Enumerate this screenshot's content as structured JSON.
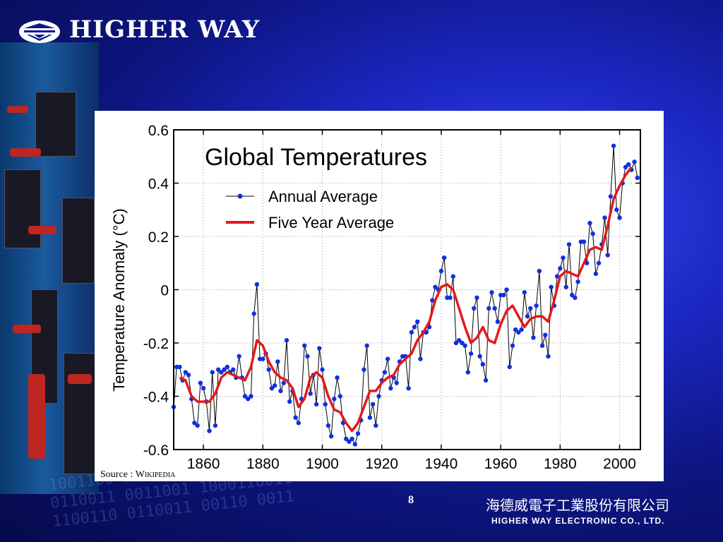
{
  "brand": {
    "name": "HIGHER WAY"
  },
  "slide": {
    "page_number": "8",
    "source_prefix": "Source : ",
    "source_name": "Wikipedia",
    "company_cn": "海德威電子工業股份有限公司",
    "company_en": "HIGHER WAY ELECTRONIC CO., LTD."
  },
  "colors": {
    "annual": "#1030e0",
    "five_year": "#e31a1a",
    "line": "#000000"
  },
  "chart_data": {
    "type": "line",
    "title": "Global Temperatures",
    "xlabel": "",
    "ylabel": "Temperature Anomaly (°C)",
    "xlim": [
      1850,
      2007
    ],
    "ylim": [
      -0.6,
      0.6
    ],
    "xticks": [
      "1860",
      "1880",
      "1900",
      "1920",
      "1940",
      "1960",
      "1980",
      "2000"
    ],
    "yticks": [
      "0.6",
      "0.4",
      "0.2",
      "0",
      "-0.2",
      "-0.4",
      "-0.6"
    ],
    "grid": true,
    "legend": "top-left",
    "series": [
      {
        "name": "Annual Average",
        "x": [
          1850,
          1851,
          1852,
          1853,
          1854,
          1855,
          1856,
          1857,
          1858,
          1859,
          1860,
          1861,
          1862,
          1863,
          1864,
          1865,
          1866,
          1867,
          1868,
          1869,
          1870,
          1871,
          1872,
          1873,
          1874,
          1875,
          1876,
          1877,
          1878,
          1879,
          1880,
          1881,
          1882,
          1883,
          1884,
          1885,
          1886,
          1887,
          1888,
          1889,
          1890,
          1891,
          1892,
          1893,
          1894,
          1895,
          1896,
          1897,
          1898,
          1899,
          1900,
          1901,
          1902,
          1903,
          1904,
          1905,
          1906,
          1907,
          1908,
          1909,
          1910,
          1911,
          1912,
          1913,
          1914,
          1915,
          1916,
          1917,
          1918,
          1919,
          1920,
          1921,
          1922,
          1923,
          1924,
          1925,
          1926,
          1927,
          1928,
          1929,
          1930,
          1931,
          1932,
          1933,
          1934,
          1935,
          1936,
          1937,
          1938,
          1939,
          1940,
          1941,
          1942,
          1943,
          1944,
          1945,
          1946,
          1947,
          1948,
          1949,
          1950,
          1951,
          1952,
          1953,
          1954,
          1955,
          1956,
          1957,
          1958,
          1959,
          1960,
          1961,
          1962,
          1963,
          1964,
          1965,
          1966,
          1967,
          1968,
          1969,
          1970,
          1971,
          1972,
          1973,
          1974,
          1975,
          1976,
          1977,
          1978,
          1979,
          1980,
          1981,
          1982,
          1983,
          1984,
          1985,
          1986,
          1987,
          1988,
          1989,
          1990,
          1991,
          1992,
          1993,
          1994,
          1995,
          1996,
          1997,
          1998,
          1999,
          2000,
          2001,
          2002,
          2003,
          2004,
          2005,
          2006
        ],
        "values": [
          -0.44,
          -0.29,
          -0.29,
          -0.34,
          -0.31,
          -0.32,
          -0.41,
          -0.5,
          -0.51,
          -0.35,
          -0.37,
          -0.42,
          -0.53,
          -0.31,
          -0.51,
          -0.3,
          -0.31,
          -0.3,
          -0.29,
          -0.31,
          -0.3,
          -0.33,
          -0.25,
          -0.33,
          -0.4,
          -0.41,
          -0.4,
          -0.09,
          0.02,
          -0.26,
          -0.26,
          -0.24,
          -0.3,
          -0.37,
          -0.36,
          -0.27,
          -0.38,
          -0.35,
          -0.19,
          -0.42,
          -0.38,
          -0.48,
          -0.5,
          -0.41,
          -0.21,
          -0.25,
          -0.39,
          -0.32,
          -0.43,
          -0.22,
          -0.3,
          -0.43,
          -0.51,
          -0.55,
          -0.41,
          -0.33,
          -0.4,
          -0.5,
          -0.56,
          -0.57,
          -0.56,
          -0.58,
          -0.54,
          -0.49,
          -0.3,
          -0.21,
          -0.48,
          -0.43,
          -0.51,
          -0.4,
          -0.34,
          -0.31,
          -0.26,
          -0.37,
          -0.33,
          -0.35,
          -0.27,
          -0.25,
          -0.25,
          -0.37,
          -0.16,
          -0.14,
          -0.12,
          -0.26,
          -0.16,
          -0.16,
          -0.14,
          -0.04,
          0.01,
          0.0,
          0.07,
          0.12,
          -0.03,
          -0.03,
          0.05,
          -0.2,
          -0.19,
          -0.2,
          -0.21,
          -0.31,
          -0.24,
          -0.07,
          -0.03,
          -0.25,
          -0.28,
          -0.34,
          -0.07,
          -0.01,
          -0.07,
          -0.12,
          -0.02,
          -0.02,
          0.0,
          -0.29,
          -0.21,
          -0.15,
          -0.16,
          -0.15,
          -0.01,
          -0.1,
          -0.07,
          -0.18,
          -0.06,
          0.07,
          -0.21,
          -0.17,
          -0.25,
          0.01,
          -0.06,
          0.05,
          0.08,
          0.12,
          0.01,
          0.17,
          -0.02,
          -0.03,
          0.03,
          0.18,
          0.18,
          0.1,
          0.25,
          0.21,
          0.06,
          0.1,
          0.17,
          0.27,
          0.13,
          0.35,
          0.54,
          0.3,
          0.27,
          0.4,
          0.46,
          0.47,
          0.45,
          0.48,
          0.42
        ]
      },
      {
        "name": "Five Year Average",
        "x": [
          1852,
          1854,
          1856,
          1858,
          1860,
          1862,
          1864,
          1866,
          1868,
          1870,
          1872,
          1874,
          1876,
          1878,
          1880,
          1882,
          1884,
          1886,
          1888,
          1890,
          1892,
          1894,
          1896,
          1898,
          1900,
          1902,
          1904,
          1906,
          1908,
          1910,
          1912,
          1914,
          1916,
          1918,
          1920,
          1922,
          1924,
          1926,
          1928,
          1930,
          1932,
          1934,
          1936,
          1938,
          1940,
          1942,
          1944,
          1946,
          1948,
          1950,
          1952,
          1954,
          1956,
          1958,
          1960,
          1962,
          1964,
          1966,
          1968,
          1970,
          1972,
          1974,
          1976,
          1978,
          1980,
          1982,
          1984,
          1986,
          1988,
          1990,
          1992,
          1994,
          1996,
          1998,
          2000,
          2002,
          2004
        ],
        "values": [
          -0.33,
          -0.34,
          -0.4,
          -0.42,
          -0.42,
          -0.42,
          -0.39,
          -0.33,
          -0.31,
          -0.32,
          -0.33,
          -0.34,
          -0.29,
          -0.19,
          -0.21,
          -0.27,
          -0.31,
          -0.33,
          -0.34,
          -0.37,
          -0.44,
          -0.41,
          -0.33,
          -0.31,
          -0.33,
          -0.4,
          -0.45,
          -0.46,
          -0.5,
          -0.53,
          -0.5,
          -0.44,
          -0.38,
          -0.38,
          -0.35,
          -0.33,
          -0.32,
          -0.28,
          -0.26,
          -0.24,
          -0.19,
          -0.16,
          -0.12,
          -0.04,
          0.01,
          0.02,
          0.0,
          -0.07,
          -0.14,
          -0.2,
          -0.18,
          -0.14,
          -0.19,
          -0.2,
          -0.13,
          -0.08,
          -0.06,
          -0.1,
          -0.14,
          -0.11,
          -0.1,
          -0.1,
          -0.12,
          -0.04,
          0.05,
          0.07,
          0.06,
          0.05,
          0.1,
          0.15,
          0.16,
          0.15,
          0.24,
          0.34,
          0.39,
          0.43,
          0.46
        ]
      }
    ]
  }
}
